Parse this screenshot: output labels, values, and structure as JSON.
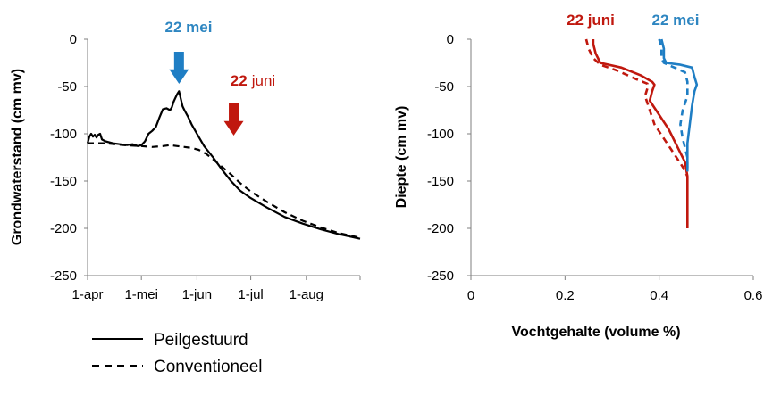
{
  "chart_data": [
    {
      "type": "line",
      "xlabel": "",
      "ylabel": "Grondwaterstand (cm mv)",
      "x_ticks": [
        "1-apr",
        "1-mei",
        "1-jun",
        "1-jul",
        "1-aug"
      ],
      "x_tick_days": [
        0,
        30,
        61,
        91,
        122
      ],
      "xlim": [
        0,
        152
      ],
      "ylim": [
        -250,
        0
      ],
      "y_ticks": [
        0,
        -50,
        -100,
        -150,
        -200,
        -250
      ],
      "grid": false,
      "series": [
        {
          "name": "Peilgestuurd",
          "style": "solid",
          "color": "#000000",
          "points": [
            [
              0,
              -110
            ],
            [
              1,
              -103
            ],
            [
              2,
              -100
            ],
            [
              3,
              -103
            ],
            [
              4,
              -101
            ],
            [
              5,
              -104
            ],
            [
              6,
              -101
            ],
            [
              7,
              -100
            ],
            [
              8,
              -106
            ],
            [
              10,
              -108
            ],
            [
              14,
              -110
            ],
            [
              18,
              -111
            ],
            [
              22,
              -112
            ],
            [
              25,
              -111
            ],
            [
              28,
              -113
            ],
            [
              30,
              -112
            ],
            [
              32,
              -108
            ],
            [
              34,
              -100
            ],
            [
              36,
              -97
            ],
            [
              38,
              -93
            ],
            [
              40,
              -83
            ],
            [
              42,
              -74
            ],
            [
              44,
              -73
            ],
            [
              46,
              -75
            ],
            [
              47,
              -72
            ],
            [
              48,
              -66
            ],
            [
              49,
              -62
            ],
            [
              50,
              -58
            ],
            [
              51,
              -55
            ],
            [
              52,
              -63
            ],
            [
              53,
              -71
            ],
            [
              54,
              -75
            ],
            [
              56,
              -82
            ],
            [
              58,
              -90
            ],
            [
              61,
              -100
            ],
            [
              65,
              -113
            ],
            [
              70,
              -125
            ],
            [
              75,
              -138
            ],
            [
              80,
              -150
            ],
            [
              85,
              -160
            ],
            [
              91,
              -168
            ],
            [
              100,
              -178
            ],
            [
              110,
              -188
            ],
            [
              120,
              -195
            ],
            [
              130,
              -201
            ],
            [
              140,
              -206
            ],
            [
              152,
              -211
            ]
          ]
        },
        {
          "name": "Conventioneel",
          "style": "dashed",
          "color": "#000000",
          "points": [
            [
              0,
              -110
            ],
            [
              10,
              -110
            ],
            [
              20,
              -112
            ],
            [
              30,
              -113
            ],
            [
              36,
              -114
            ],
            [
              42,
              -113
            ],
            [
              46,
              -112
            ],
            [
              50,
              -113
            ],
            [
              54,
              -114
            ],
            [
              58,
              -115
            ],
            [
              62,
              -117
            ],
            [
              66,
              -121
            ],
            [
              70,
              -127
            ],
            [
              75,
              -135
            ],
            [
              80,
              -143
            ],
            [
              85,
              -152
            ],
            [
              91,
              -161
            ],
            [
              100,
              -172
            ],
            [
              110,
              -183
            ],
            [
              120,
              -192
            ],
            [
              130,
              -199
            ],
            [
              140,
              -205
            ],
            [
              152,
              -210
            ]
          ]
        }
      ],
      "annotations": [
        {
          "text": "22 mei",
          "color": "#2E86C1",
          "arrow_color": "#1F7EC4",
          "arrow_x": 52
        },
        {
          "date": "22",
          "text": "juni",
          "color": "#C0180E",
          "arrow_color": "#C0180E",
          "arrow_x": 82
        }
      ],
      "legend": {
        "placement": "bottom-left",
        "entries": [
          "Peilgestuurd",
          "Conventioneel"
        ]
      }
    },
    {
      "type": "line",
      "xlabel": "Vochtgehalte (volume %)",
      "ylabel": "Diepte (cm mv)",
      "xlim": [
        0,
        0.6
      ],
      "x_ticks": [
        0,
        0.2,
        0.4,
        0.6
      ],
      "ylim": [
        -250,
        0
      ],
      "y_ticks": [
        0,
        -50,
        -100,
        -150,
        -200,
        -250
      ],
      "grid": false,
      "series": [
        {
          "date": "22 juni",
          "style": "solid",
          "color": "#C0180E",
          "points": [
            [
              0.26,
              0
            ],
            [
              0.26,
              -5
            ],
            [
              0.265,
              -15
            ],
            [
              0.275,
              -25
            ],
            [
              0.32,
              -30
            ],
            [
              0.36,
              -38
            ],
            [
              0.385,
              -45
            ],
            [
              0.39,
              -48
            ],
            [
              0.385,
              -55
            ],
            [
              0.38,
              -65
            ],
            [
              0.4,
              -80
            ],
            [
              0.42,
              -95
            ],
            [
              0.44,
              -115
            ],
            [
              0.455,
              -130
            ],
            [
              0.46,
              -145
            ],
            [
              0.46,
              -170
            ],
            [
              0.46,
              -200
            ]
          ]
        },
        {
          "date": "22 juni",
          "style": "dashed",
          "color": "#C0180E",
          "points": [
            [
              0.245,
              0
            ],
            [
              0.25,
              -10
            ],
            [
              0.26,
              -20
            ],
            [
              0.275,
              -27
            ],
            [
              0.31,
              -33
            ],
            [
              0.35,
              -42
            ],
            [
              0.375,
              -47
            ],
            [
              0.375,
              -52
            ],
            [
              0.37,
              -60
            ],
            [
              0.38,
              -75
            ],
            [
              0.39,
              -90
            ],
            [
              0.41,
              -105
            ],
            [
              0.43,
              -120
            ],
            [
              0.45,
              -135
            ],
            [
              0.46,
              -145
            ]
          ]
        },
        {
          "date": "22 mei",
          "style": "solid",
          "color": "#1F7EC4",
          "points": [
            [
              0.405,
              0
            ],
            [
              0.41,
              -10
            ],
            [
              0.41,
              -20
            ],
            [
              0.415,
              -25
            ],
            [
              0.445,
              -27
            ],
            [
              0.47,
              -30
            ],
            [
              0.475,
              -40
            ],
            [
              0.48,
              -48
            ],
            [
              0.475,
              -55
            ],
            [
              0.47,
              -70
            ],
            [
              0.465,
              -90
            ],
            [
              0.46,
              -110
            ],
            [
              0.46,
              -140
            ]
          ]
        },
        {
          "date": "22 mei",
          "style": "dashed",
          "color": "#1F7EC4",
          "points": [
            [
              0.4,
              0
            ],
            [
              0.405,
              -10
            ],
            [
              0.405,
              -20
            ],
            [
              0.41,
              -25
            ],
            [
              0.455,
              -35
            ],
            [
              0.46,
              -45
            ],
            [
              0.46,
              -60
            ],
            [
              0.45,
              -75
            ],
            [
              0.445,
              -90
            ],
            [
              0.45,
              -105
            ],
            [
              0.46,
              -125
            ],
            [
              0.46,
              -140
            ]
          ]
        }
      ],
      "annotations": [
        {
          "text": "22 juni",
          "color": "#C0180E"
        },
        {
          "text": "22 mei",
          "color": "#2E86C1"
        }
      ]
    }
  ]
}
